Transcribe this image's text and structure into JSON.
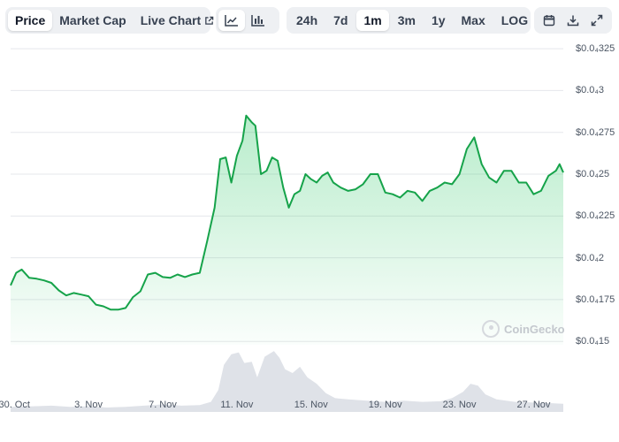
{
  "toolbar": {
    "metric_tabs": [
      {
        "label": "Price",
        "active": true
      },
      {
        "label": "Market Cap",
        "active": false
      },
      {
        "label": "Live Chart",
        "active": false
      }
    ],
    "chart_type_icons": [
      "line-chart-icon",
      "bar-chart-icon"
    ],
    "range_tabs": [
      {
        "label": "24h",
        "active": false
      },
      {
        "label": "7d",
        "active": false
      },
      {
        "label": "1m",
        "active": true
      },
      {
        "label": "3m",
        "active": false
      },
      {
        "label": "1y",
        "active": false
      },
      {
        "label": "Max",
        "active": false
      },
      {
        "label": "LOG",
        "active": false
      }
    ],
    "tool_icons": [
      "calendar-icon",
      "download-icon",
      "expand-icon"
    ]
  },
  "watermark": {
    "text": "CoinGecko"
  },
  "colors": {
    "price_line": "#16a34a",
    "area_fill": "#22c55e",
    "volume_fill": "#dfe2e8",
    "gridline": "#e5e7eb",
    "toolbar_bg": "#eef0f3"
  },
  "chart_data": {
    "type": "line",
    "grid": true,
    "y_axis_position": "right",
    "ylim": [
      1.48e-05,
      3.33e-05
    ],
    "y_ticks": [
      {
        "value": 3.25e-05,
        "label": "$0.0₄325"
      },
      {
        "value": 3e-05,
        "label": "$0.0₄3"
      },
      {
        "value": 2.75e-05,
        "label": "$0.0₄275"
      },
      {
        "value": 2.5e-05,
        "label": "$0.0₄25"
      },
      {
        "value": 2.25e-05,
        "label": "$0.0₄225"
      },
      {
        "value": 2e-05,
        "label": "$0.0₄2"
      },
      {
        "value": 1.75e-05,
        "label": "$0.0₄175"
      },
      {
        "value": 1.5e-05,
        "label": "$0.0₄15"
      }
    ],
    "x_ticks": [
      {
        "day": 0,
        "label": "30. Oct"
      },
      {
        "day": 4,
        "label": "3. Nov"
      },
      {
        "day": 8,
        "label": "7. Nov"
      },
      {
        "day": 12,
        "label": "11. Nov"
      },
      {
        "day": 16,
        "label": "15. Nov"
      },
      {
        "day": 20,
        "label": "19. Nov"
      },
      {
        "day": 24,
        "label": "23. Nov"
      },
      {
        "day": 28,
        "label": "27. Nov"
      }
    ],
    "xlim_days": [
      -0.2,
      29.6
    ],
    "price_series": {
      "name": "Price",
      "x_days": [
        -0.2,
        0.1,
        0.4,
        0.8,
        1.2,
        1.6,
        2.0,
        2.4,
        2.8,
        3.2,
        3.6,
        4.0,
        4.4,
        4.8,
        5.2,
        5.6,
        6.0,
        6.4,
        6.8,
        7.2,
        7.6,
        8.0,
        8.4,
        8.8,
        9.2,
        9.6,
        10.0,
        10.4,
        10.8,
        11.1,
        11.4,
        11.7,
        12.0,
        12.3,
        12.5,
        12.8,
        13.0,
        13.3,
        13.6,
        13.9,
        14.2,
        14.5,
        14.8,
        15.1,
        15.4,
        15.7,
        16.0,
        16.3,
        16.6,
        16.9,
        17.2,
        17.6,
        18.0,
        18.4,
        18.8,
        19.2,
        19.6,
        20.0,
        20.4,
        20.8,
        21.2,
        21.6,
        22.0,
        22.4,
        22.8,
        23.2,
        23.6,
        24.0,
        24.4,
        24.8,
        25.2,
        25.6,
        26.0,
        26.4,
        26.8,
        27.2,
        27.6,
        28.0,
        28.4,
        28.8,
        29.2,
        29.4,
        29.6
      ],
      "y": [
        1.835e-05,
        1.91e-05,
        1.93e-05,
        1.88e-05,
        1.875e-05,
        1.865e-05,
        1.85e-05,
        1.805e-05,
        1.775e-05,
        1.79e-05,
        1.78e-05,
        1.77e-05,
        1.72e-05,
        1.71e-05,
        1.69e-05,
        1.69e-05,
        1.7e-05,
        1.765e-05,
        1.8e-05,
        1.9e-05,
        1.91e-05,
        1.885e-05,
        1.88e-05,
        1.9e-05,
        1.885e-05,
        1.9e-05,
        1.91e-05,
        2.1e-05,
        2.3e-05,
        2.59e-05,
        2.6e-05,
        2.45e-05,
        2.61e-05,
        2.7e-05,
        2.85e-05,
        2.81e-05,
        2.79e-05,
        2.5e-05,
        2.52e-05,
        2.6e-05,
        2.58e-05,
        2.42e-05,
        2.3e-05,
        2.38e-05,
        2.4e-05,
        2.5e-05,
        2.47e-05,
        2.45e-05,
        2.49e-05,
        2.51e-05,
        2.45e-05,
        2.42e-05,
        2.4e-05,
        2.41e-05,
        2.44e-05,
        2.5e-05,
        2.5e-05,
        2.39e-05,
        2.38e-05,
        2.36e-05,
        2.4e-05,
        2.39e-05,
        2.34e-05,
        2.4e-05,
        2.42e-05,
        2.45e-05,
        2.44e-05,
        2.5e-05,
        2.65e-05,
        2.72e-05,
        2.56e-05,
        2.48e-05,
        2.45e-05,
        2.52e-05,
        2.52e-05,
        2.45e-05,
        2.45e-05,
        2.38e-05,
        2.4e-05,
        2.49e-05,
        2.52e-05,
        2.56e-05,
        2.51e-05
      ]
    },
    "volume_series": {
      "name": "Volume",
      "x_days": [
        -0.2,
        1.0,
        2.0,
        3.0,
        4.0,
        5.0,
        6.0,
        7.0,
        8.0,
        9.0,
        10.0,
        10.6,
        11.0,
        11.3,
        11.7,
        12.1,
        12.4,
        12.8,
        13.1,
        13.5,
        14.0,
        14.3,
        14.6,
        15.0,
        15.4,
        15.8,
        16.3,
        16.8,
        17.3,
        18.0,
        19.0,
        20.0,
        21.0,
        22.0,
        23.0,
        23.6,
        24.2,
        24.6,
        25.0,
        25.4,
        26.0,
        27.0,
        28.0,
        29.0,
        29.6
      ],
      "relative": [
        0.08,
        0.09,
        0.1,
        0.08,
        0.09,
        0.07,
        0.08,
        0.1,
        0.12,
        0.1,
        0.11,
        0.16,
        0.35,
        0.75,
        0.92,
        0.95,
        0.78,
        0.8,
        0.55,
        0.88,
        0.97,
        0.86,
        0.68,
        0.62,
        0.72,
        0.55,
        0.45,
        0.3,
        0.22,
        0.2,
        0.18,
        0.16,
        0.18,
        0.16,
        0.17,
        0.22,
        0.32,
        0.45,
        0.42,
        0.28,
        0.2,
        0.16,
        0.15,
        0.14,
        0.13
      ]
    }
  }
}
